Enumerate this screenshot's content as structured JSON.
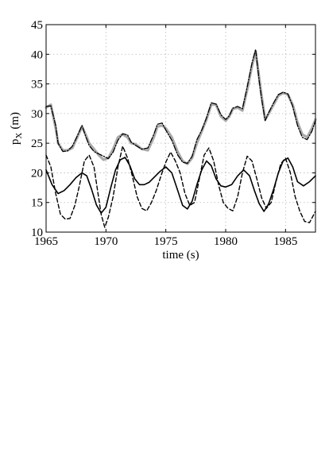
{
  "chart_data": {
    "type": "line",
    "title": "",
    "xlabel": "time (s)",
    "ylabel": "p",
    "ylabel_sub": "X",
    "ylabel_unit": "(m)",
    "xlim": [
      1965,
      1987.5
    ],
    "ylim": [
      10,
      45
    ],
    "xticks": [
      1965,
      1970,
      1975,
      1980,
      1985
    ],
    "yticks": [
      10,
      15,
      20,
      25,
      30,
      35,
      40,
      45
    ],
    "grid": true,
    "legend": "none",
    "series": [
      {
        "color": "#aaaaaa",
        "style": "solid",
        "width": 3.2,
        "x": [
          1965.0,
          1965.4,
          1965.8,
          1966.0,
          1966.4,
          1966.8,
          1967.2,
          1967.6,
          1968.0,
          1968.3,
          1968.6,
          1969.0,
          1969.4,
          1969.8,
          1970.2,
          1970.6,
          1971.0,
          1971.4,
          1971.8,
          1972.1,
          1972.5,
          1973.0,
          1973.5,
          1974.0,
          1974.3,
          1974.7,
          1975.0,
          1975.5,
          1976.0,
          1976.4,
          1976.8,
          1977.2,
          1977.6,
          1978.0,
          1978.4,
          1978.8,
          1979.2,
          1979.6,
          1980.0,
          1980.3,
          1980.6,
          1981.0,
          1981.4,
          1981.8,
          1982.2,
          1982.5,
          1982.8,
          1983.0,
          1983.3,
          1983.6,
          1984.0,
          1984.4,
          1984.8,
          1985.2,
          1985.6,
          1986.0,
          1986.4,
          1986.8,
          1987.2,
          1987.5
        ],
        "y": [
          31.0,
          31.5,
          27.5,
          25.0,
          23.8,
          23.8,
          24.2,
          26.0,
          27.8,
          26.5,
          25.0,
          24.0,
          23.0,
          22.2,
          22.5,
          24.0,
          26.0,
          26.5,
          26.0,
          25.0,
          24.8,
          24.0,
          23.8,
          26.0,
          27.8,
          28.0,
          27.5,
          26.0,
          23.5,
          22.0,
          21.5,
          22.5,
          25.0,
          27.0,
          29.0,
          31.5,
          31.5,
          29.5,
          28.8,
          29.5,
          30.8,
          31.0,
          30.5,
          34.0,
          38.0,
          40.5,
          36.0,
          33.0,
          29.0,
          30.0,
          31.5,
          33.0,
          33.5,
          33.2,
          31.5,
          28.5,
          26.5,
          26.0,
          27.5,
          29.0
        ]
      },
      {
        "color": "#000000",
        "style": "dashdot",
        "width": 1.3,
        "x": [
          1965.0,
          1965.4,
          1965.8,
          1966.0,
          1966.4,
          1966.8,
          1967.2,
          1967.6,
          1968.0,
          1968.3,
          1968.6,
          1969.0,
          1969.4,
          1969.8,
          1970.2,
          1970.6,
          1971.0,
          1971.4,
          1971.8,
          1972.1,
          1972.5,
          1973.0,
          1973.5,
          1974.0,
          1974.3,
          1974.7,
          1975.0,
          1975.5,
          1976.0,
          1976.4,
          1976.8,
          1977.2,
          1977.6,
          1978.0,
          1978.4,
          1978.8,
          1979.2,
          1979.6,
          1980.0,
          1980.3,
          1980.6,
          1981.0,
          1981.4,
          1981.8,
          1982.2,
          1982.5,
          1982.8,
          1983.0,
          1983.3,
          1983.6,
          1984.0,
          1984.4,
          1984.8,
          1985.2,
          1985.6,
          1986.0,
          1986.4,
          1986.8,
          1987.2,
          1987.5
        ],
        "y": [
          31.2,
          31.3,
          28.0,
          25.0,
          23.6,
          23.7,
          24.5,
          26.2,
          28.0,
          26.2,
          24.6,
          23.6,
          23.2,
          22.8,
          22.4,
          23.5,
          25.5,
          26.6,
          26.4,
          25.2,
          24.6,
          24.0,
          24.2,
          26.5,
          28.2,
          28.4,
          27.2,
          25.5,
          23.0,
          21.8,
          21.6,
          22.8,
          25.6,
          27.2,
          29.3,
          31.8,
          31.6,
          29.8,
          29.0,
          29.6,
          30.9,
          31.2,
          30.8,
          34.5,
          38.5,
          40.8,
          35.5,
          32.5,
          28.8,
          30.2,
          31.8,
          33.2,
          33.6,
          33.3,
          31.2,
          28.0,
          26.0,
          25.6,
          27.0,
          28.8
        ]
      },
      {
        "color": "#000000",
        "style": "solid",
        "width": 1.6,
        "x": [
          1965.0,
          1965.5,
          1966.0,
          1966.5,
          1967.0,
          1967.5,
          1968.0,
          1968.4,
          1968.8,
          1969.2,
          1969.6,
          1970.0,
          1970.4,
          1970.8,
          1971.2,
          1971.6,
          1972.0,
          1972.4,
          1972.8,
          1973.2,
          1973.6,
          1974.0,
          1974.5,
          1975.0,
          1975.5,
          1976.0,
          1976.4,
          1976.8,
          1977.2,
          1977.6,
          1978.0,
          1978.4,
          1978.8,
          1979.2,
          1979.6,
          1980.0,
          1980.5,
          1981.0,
          1981.5,
          1982.0,
          1982.4,
          1982.8,
          1983.2,
          1983.6,
          1984.0,
          1984.4,
          1984.8,
          1985.2,
          1985.6,
          1986.0,
          1986.5,
          1987.0,
          1987.5
        ],
        "y": [
          20.5,
          18.0,
          16.5,
          17.0,
          18.0,
          19.2,
          20.0,
          19.5,
          17.2,
          14.6,
          13.2,
          14.2,
          17.5,
          20.5,
          22.2,
          22.6,
          21.2,
          19.0,
          18.0,
          18.0,
          18.4,
          19.2,
          20.2,
          21.0,
          20.0,
          17.0,
          14.5,
          13.9,
          15.2,
          18.0,
          20.5,
          22.0,
          21.2,
          19.0,
          17.8,
          17.6,
          18.0,
          19.5,
          20.5,
          19.5,
          17.0,
          14.8,
          13.5,
          14.8,
          17.2,
          20.0,
          22.0,
          22.5,
          21.0,
          18.5,
          17.8,
          18.5,
          19.5
        ]
      },
      {
        "color": "#000000",
        "style": "dashed",
        "width": 1.4,
        "x": [
          1965.0,
          1965.4,
          1965.8,
          1966.2,
          1966.6,
          1967.0,
          1967.4,
          1967.8,
          1968.2,
          1968.6,
          1969.0,
          1969.3,
          1969.6,
          1969.9,
          1970.2,
          1970.6,
          1971.0,
          1971.4,
          1971.8,
          1972.2,
          1972.6,
          1973.0,
          1973.4,
          1973.8,
          1974.2,
          1974.6,
          1975.0,
          1975.4,
          1975.8,
          1976.2,
          1976.6,
          1977.0,
          1977.4,
          1977.8,
          1978.2,
          1978.6,
          1979.0,
          1979.4,
          1979.8,
          1980.2,
          1980.6,
          1981.0,
          1981.4,
          1981.8,
          1982.2,
          1982.6,
          1983.0,
          1983.4,
          1983.8,
          1984.2,
          1984.6,
          1985.0,
          1985.4,
          1985.8,
          1986.2,
          1986.6,
          1987.0,
          1987.5
        ],
        "y": [
          23.0,
          21.0,
          16.5,
          13.0,
          12.2,
          12.3,
          14.5,
          18.0,
          22.0,
          23.0,
          21.0,
          17.0,
          13.0,
          10.8,
          12.5,
          16.0,
          21.0,
          24.5,
          22.5,
          19.5,
          16.0,
          14.0,
          13.6,
          15.0,
          17.0,
          19.5,
          21.8,
          23.5,
          22.0,
          20.0,
          16.5,
          14.5,
          15.0,
          19.0,
          23.0,
          24.2,
          22.0,
          18.0,
          15.0,
          14.0,
          13.6,
          16.0,
          20.0,
          22.8,
          22.0,
          19.0,
          15.8,
          14.0,
          15.0,
          18.5,
          21.5,
          22.5,
          20.0,
          16.0,
          13.5,
          11.8,
          11.6,
          13.5
        ]
      }
    ]
  }
}
